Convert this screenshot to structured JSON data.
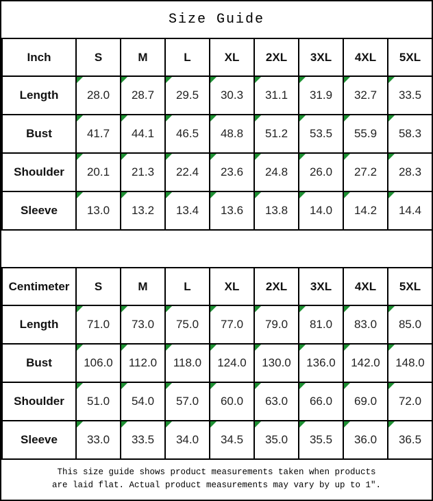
{
  "title": "Size Guide",
  "colors": {
    "border": "#000000",
    "background": "#ffffff",
    "flag_triangle_green": "#1e9033"
  },
  "footer": {
    "line1": "This size guide shows product measurements taken when products",
    "line2": "are laid flat. Actual product measurements may vary by up to 1″."
  },
  "chart_data": [
    {
      "type": "table",
      "unit_label": "Inch",
      "sizes": [
        "S",
        "M",
        "L",
        "XL",
        "2XL",
        "3XL",
        "4XL",
        "5XL"
      ],
      "rows": [
        {
          "label": "Length",
          "values": [
            "28.0",
            "28.7",
            "29.5",
            "30.3",
            "31.1",
            "31.9",
            "32.7",
            "33.5"
          ]
        },
        {
          "label": "Bust",
          "values": [
            "41.7",
            "44.1",
            "46.5",
            "48.8",
            "51.2",
            "53.5",
            "55.9",
            "58.3"
          ]
        },
        {
          "label": "Shoulder",
          "values": [
            "20.1",
            "21.3",
            "22.4",
            "23.6",
            "24.8",
            "26.0",
            "27.2",
            "28.3"
          ]
        },
        {
          "label": "Sleeve",
          "values": [
            "13.0",
            "13.2",
            "13.4",
            "13.6",
            "13.8",
            "14.0",
            "14.2",
            "14.4"
          ]
        }
      ]
    },
    {
      "type": "table",
      "unit_label": "Centimeter",
      "sizes": [
        "S",
        "M",
        "L",
        "XL",
        "2XL",
        "3XL",
        "4XL",
        "5XL"
      ],
      "rows": [
        {
          "label": "Length",
          "values": [
            "71.0",
            "73.0",
            "75.0",
            "77.0",
            "79.0",
            "81.0",
            "83.0",
            "85.0"
          ]
        },
        {
          "label": "Bust",
          "values": [
            "106.0",
            "112.0",
            "118.0",
            "124.0",
            "130.0",
            "136.0",
            "142.0",
            "148.0"
          ]
        },
        {
          "label": "Shoulder",
          "values": [
            "51.0",
            "54.0",
            "57.0",
            "60.0",
            "63.0",
            "66.0",
            "69.0",
            "72.0"
          ]
        },
        {
          "label": "Sleeve",
          "values": [
            "33.0",
            "33.5",
            "34.0",
            "34.5",
            "35.0",
            "35.5",
            "36.0",
            "36.5"
          ]
        }
      ]
    }
  ]
}
